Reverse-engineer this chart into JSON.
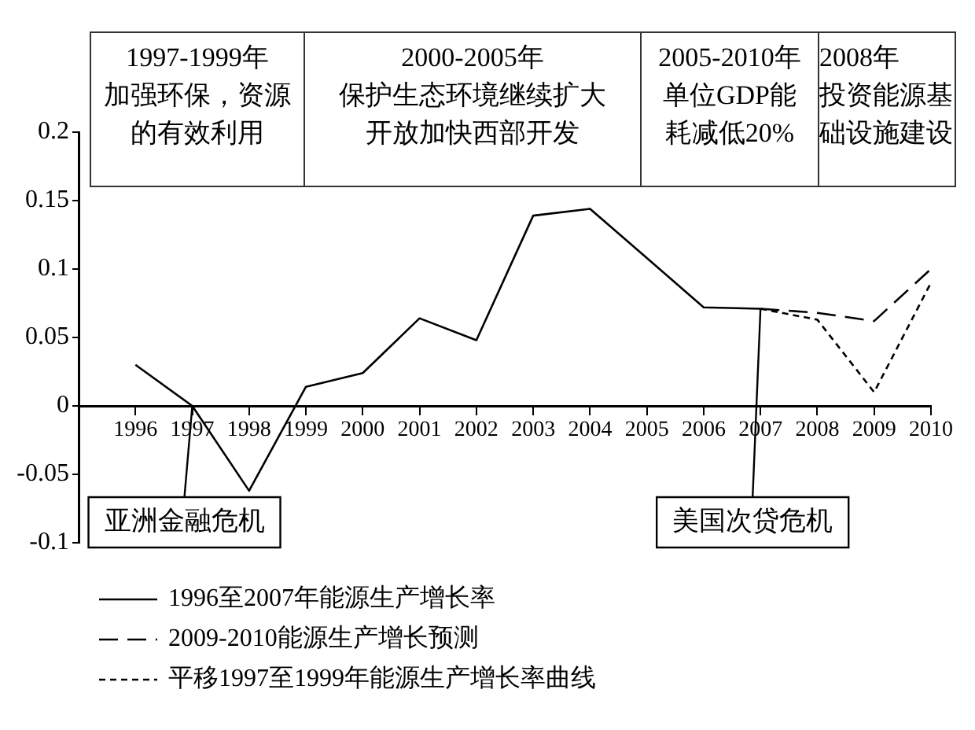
{
  "chart_data": {
    "type": "line",
    "x": [
      1996,
      1997,
      1998,
      1999,
      2000,
      2001,
      2002,
      2003,
      2004,
      2005,
      2006,
      2007
    ],
    "xlim": [
      1995,
      2010
    ],
    "xticks": [
      1996,
      1997,
      1998,
      1999,
      2000,
      2001,
      2002,
      2003,
      2004,
      2005,
      2006,
      2007,
      2008,
      2009,
      2010
    ],
    "ylim": [
      -0.1,
      0.2
    ],
    "yticks": [
      -0.1,
      -0.05,
      0,
      0.05,
      0.1,
      0.15,
      0.2
    ],
    "series": [
      {
        "name": "1996至2007年能源生产增长率",
        "color": "#000000",
        "line_style": "solid",
        "values": [
          0.03,
          0,
          -0.062,
          0.014,
          0.024,
          0.064,
          0.048,
          0.139,
          0.144,
          0.108,
          0.072,
          0.071
        ]
      },
      {
        "name": "2009-2010能源生产增长预测",
        "color": "#000000",
        "line_style": "dashed",
        "x": [
          2007,
          2008,
          2009,
          2010
        ],
        "values": [
          0.071,
          0.068,
          0.062,
          0.1
        ]
      },
      {
        "name": "平移1997至1999年能源生产增长率曲线",
        "color": "#000000",
        "line_style": "dotted",
        "x": [
          2007,
          2008,
          2009,
          2010
        ],
        "values": [
          0.071,
          0.063,
          0.01,
          0.09
        ]
      }
    ],
    "annotations": [
      "1997-1999年",
      "加强环保，资源的有效利用",
      "2000-2005年",
      "保护生态环境继续扩大开放加快西部开发",
      "2005-2010年",
      "单位GDP能耗减低20%",
      "2008年",
      "投资能源基础设施建设",
      {
        "text": "亚洲金融危机",
        "x": 1997,
        "y": 0
      },
      {
        "text": "美国次贷危机",
        "x": 2007,
        "y": 0.071
      }
    ],
    "marker": "none",
    "grid": false,
    "legend": "bottom"
  }
}
